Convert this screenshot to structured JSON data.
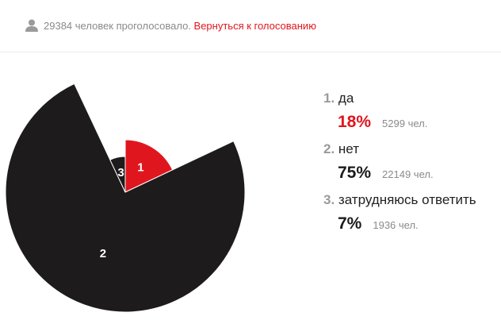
{
  "header": {
    "votes_count": "29384",
    "votes_text": "человек проголосовало.",
    "back_link": "Вернуться к голосованию"
  },
  "options": [
    {
      "num": "1.",
      "label": "да",
      "percent": "18%",
      "people": "5299 чел.",
      "value": 18,
      "color": "#e0161e",
      "slice_label": "1"
    },
    {
      "num": "2.",
      "label": "нет",
      "percent": "75%",
      "people": "22149 чел.",
      "value": 75,
      "color": "#1e1b1c",
      "slice_label": "2"
    },
    {
      "num": "3.",
      "label": "затрудняюсь ответить",
      "percent": "7%",
      "people": "1936 чел.",
      "value": 7,
      "color": "#1e1b1c",
      "slice_label": "3"
    }
  ],
  "colors": {
    "accent": "#e0161e",
    "dark": "#1e1b1c",
    "muted": "#8a8a8a"
  },
  "icons": {
    "voters": "user-icon"
  }
}
